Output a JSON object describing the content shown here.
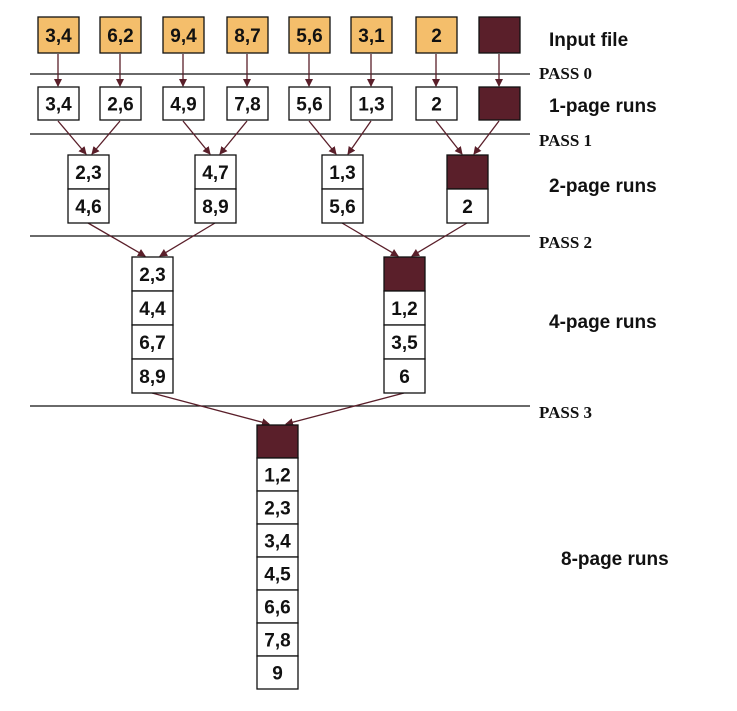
{
  "colors": {
    "input_fill": "#F4BE6B",
    "dark_fill": "#5A1F2A",
    "run_fill": "#FFFFFF",
    "arrow": "#5A1F2A",
    "line": "#111111"
  },
  "stage_labels": {
    "input": "Input file",
    "one_page": "1-page runs",
    "two_page": "2-page runs",
    "four_page": "4-page runs",
    "eight_page": "8-page runs"
  },
  "passes": [
    "PASS 0",
    "PASS 1",
    "PASS 2",
    "PASS 3"
  ],
  "input_pages": [
    "3,4",
    "6,2",
    "9,4",
    "8,7",
    "5,6",
    "3,1",
    "2",
    ""
  ],
  "one_page_runs": [
    "3,4",
    "2,6",
    "4,9",
    "7,8",
    "5,6",
    "1,3",
    "2",
    ""
  ],
  "two_page_runs": [
    [
      "2,3",
      "4,6"
    ],
    [
      "4,7",
      "8,9"
    ],
    [
      "1,3",
      "5,6"
    ],
    [
      "",
      "2"
    ]
  ],
  "four_page_runs": [
    [
      "2,3",
      "4,4",
      "6,7",
      "8,9"
    ],
    [
      "",
      "1,2",
      "3,5",
      "6"
    ]
  ],
  "eight_page_runs": [
    [
      "",
      "1,2",
      "2,3",
      "3,4",
      "4,5",
      "6,6",
      "7,8",
      "9"
    ]
  ]
}
